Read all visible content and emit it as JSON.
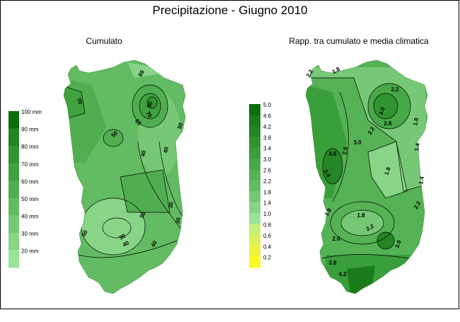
{
  "title": "Precipitazione - Giugno 2010",
  "panels": [
    {
      "subtitle": "Cumulato",
      "legend": [
        {
          "label": "100 mm",
          "color": "#0b6e0b"
        },
        {
          "label": "90 mm",
          "color": "#228522"
        },
        {
          "label": "80 mm",
          "color": "#309430"
        },
        {
          "label": "70 mm",
          "color": "#3fa23f"
        },
        {
          "label": "60 mm",
          "color": "#50ae50"
        },
        {
          "label": "50 mm",
          "color": "#63bb63"
        },
        {
          "label": "40 mm",
          "color": "#76c876"
        },
        {
          "label": "30 mm",
          "color": "#88d588"
        },
        {
          "label": "20 mm",
          "color": "#9ae49a"
        }
      ],
      "contour_labels": [
        "60",
        "70",
        "80",
        "70",
        "60",
        "50",
        "50",
        "40",
        "40",
        "50",
        "30",
        "50",
        "40",
        "40",
        "30",
        "30"
      ]
    },
    {
      "subtitle": "Rapp. tra cumulato e media climatica",
      "legend": [
        {
          "label": "5.0",
          "color": "#0b6e0b"
        },
        {
          "label": "4.6",
          "color": "#1a7c1a"
        },
        {
          "label": "4.2",
          "color": "#258625"
        },
        {
          "label": "3.8",
          "color": "#309430"
        },
        {
          "label": "3.4",
          "color": "#3a9e3a"
        },
        {
          "label": "3.0",
          "color": "#47a847"
        },
        {
          "label": "2.6",
          "color": "#55b255"
        },
        {
          "label": "2.2",
          "color": "#63bb63"
        },
        {
          "label": "1.8",
          "color": "#76c876"
        },
        {
          "label": "1.4",
          "color": "#88d588"
        },
        {
          "label": "1.0",
          "color": "#9ae49a"
        },
        {
          "label": "0.8",
          "color": "#c6ee7a"
        },
        {
          "label": "0.6",
          "color": "#dcf25a"
        },
        {
          "label": "0.4",
          "color": "#eef43c"
        },
        {
          "label": "0.2",
          "color": "#fcfc22"
        }
      ],
      "contour_labels": [
        "2.2",
        "1.8",
        "2.2",
        "3.0",
        "2.6",
        "2.2",
        "1.8",
        "1.4",
        "1.4",
        "1.8",
        "3.0",
        "2.6",
        "4.6",
        "3.4",
        "1.8",
        "2.2",
        "2.2",
        "2.6",
        "3.0",
        "3.8",
        "4.2",
        "1.8"
      ]
    }
  ]
}
